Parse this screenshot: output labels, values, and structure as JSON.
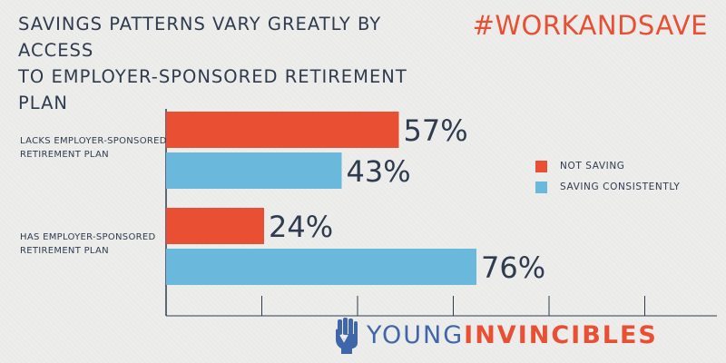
{
  "header": {
    "title_line1": "SAVINGS PATTERNS VARY GREATLY BY ACCESS",
    "title_line2": "TO EMPLOYER-SPONSORED RETIREMENT PLAN",
    "hashtag": "#WORKANDSAVE"
  },
  "colors": {
    "not_saving": "#e84f33",
    "saving_consistently": "#6ab9dd",
    "text": "#2f3b4f",
    "axis": "#2f3b4f",
    "grid": "#2f3b4f"
  },
  "chart_data": {
    "type": "bar",
    "orientation": "horizontal",
    "categories": [
      [
        "LACKS EMPLOYER-SPONSORED",
        "RETIREMENT PLAN"
      ],
      [
        "HAS EMPLOYER-SPONSORED",
        "RETIREMENT PLAN"
      ]
    ],
    "series": [
      {
        "name": "NOT SAVING",
        "values": [
          57,
          24
        ],
        "labels": [
          "57%",
          "24%"
        ],
        "color": "#e84f33"
      },
      {
        "name": "SAVING CONSISTENTLY",
        "values": [
          43,
          76
        ],
        "labels": [
          "43%",
          "76%"
        ],
        "color": "#6ab9dd"
      }
    ],
    "xlim": [
      0,
      100
    ],
    "grid": true,
    "legend": "right"
  },
  "legend": {
    "items": [
      {
        "label": "NOT SAVING",
        "color": "#e84f33"
      },
      {
        "label": "SAVING CONSISTENTLY",
        "color": "#6ab9dd"
      }
    ]
  },
  "logo": {
    "text_part1": "YOUNG",
    "text_part2": "INVINCIBLES",
    "icon": "raised-fist-icon"
  }
}
